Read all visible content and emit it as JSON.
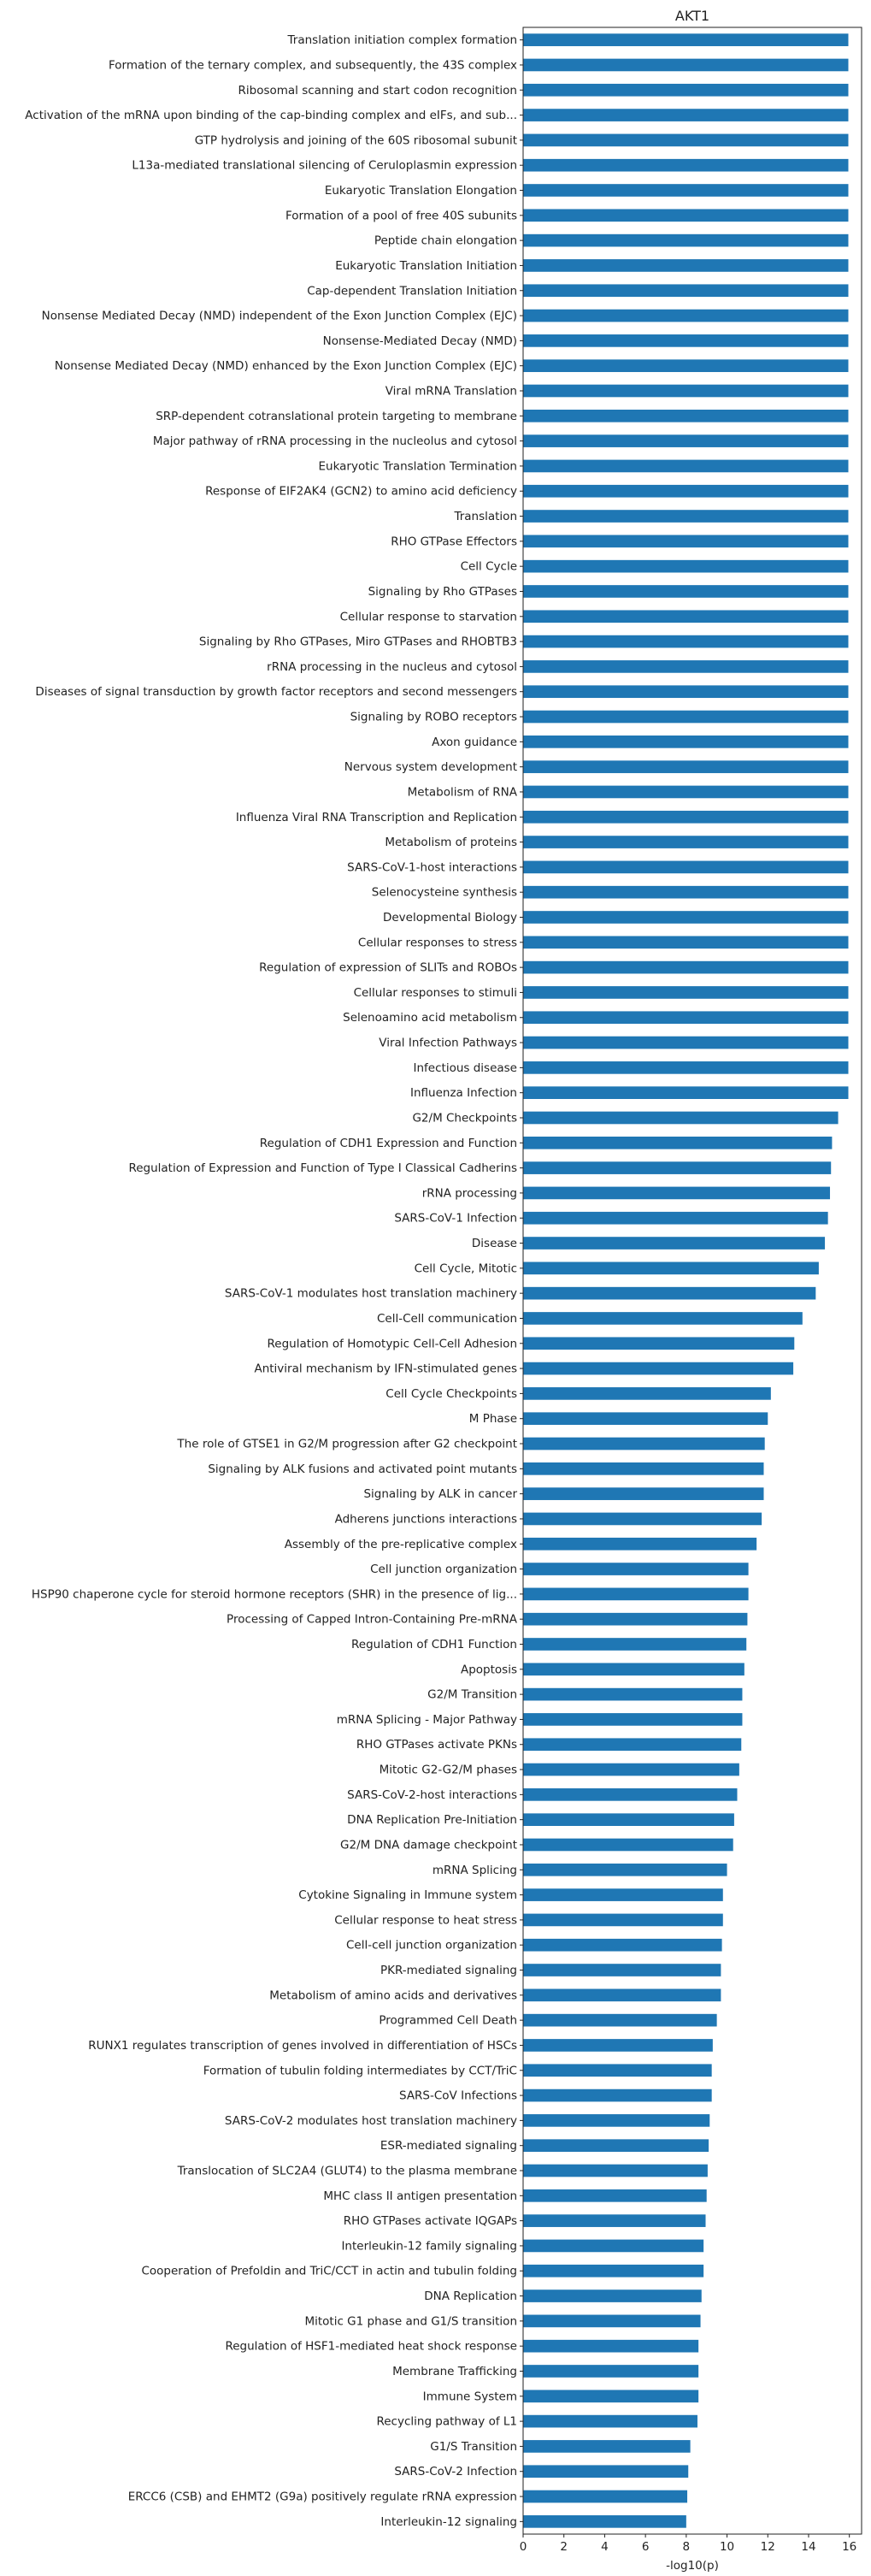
{
  "chart_data": {
    "type": "bar",
    "orientation": "horizontal",
    "title": "AKT1",
    "xlabel": "-log10(p)",
    "ylabel": "",
    "xlim": [
      0,
      16.6
    ],
    "xticks": [
      0,
      2,
      4,
      6,
      8,
      10,
      12,
      14,
      16
    ],
    "grid": false,
    "legend": "none",
    "bar_color": "#1f77b4",
    "categories": [
      "Translation initiation complex formation",
      "Formation of the ternary complex, and subsequently, the 43S complex",
      "Ribosomal scanning and start codon recognition",
      "Activation of the mRNA upon binding of the cap-binding complex and eIFs, and sub...",
      "GTP hydrolysis and joining of the 60S ribosomal subunit",
      "L13a-mediated translational silencing of Ceruloplasmin expression",
      "Eukaryotic Translation Elongation",
      "Formation of a pool of free 40S subunits",
      "Peptide chain elongation",
      "Eukaryotic Translation Initiation",
      "Cap-dependent Translation Initiation",
      "Nonsense Mediated Decay (NMD) independent of the Exon Junction Complex (EJC)",
      "Nonsense-Mediated Decay (NMD)",
      "Nonsense Mediated Decay (NMD) enhanced by the Exon Junction Complex (EJC)",
      "Viral mRNA Translation",
      "SRP-dependent cotranslational protein targeting to membrane",
      "Major pathway of rRNA processing in the nucleolus and cytosol",
      "Eukaryotic Translation Termination",
      "Response of EIF2AK4 (GCN2) to amino acid deficiency",
      "Translation",
      "RHO GTPase Effectors",
      "Cell Cycle",
      "Signaling by Rho GTPases",
      "Cellular response to starvation",
      "Signaling by Rho GTPases, Miro GTPases and RHOBTB3",
      "rRNA processing in the nucleus and cytosol",
      "Diseases of signal transduction by growth factor receptors and second messengers",
      "Signaling by ROBO receptors",
      "Axon guidance",
      "Nervous system development",
      "Metabolism of RNA",
      "Influenza Viral RNA Transcription and Replication",
      "Metabolism of proteins",
      "SARS-CoV-1-host interactions",
      "Selenocysteine synthesis",
      "Developmental Biology",
      "Cellular responses to stress",
      "Regulation of expression of SLITs and ROBOs",
      "Cellular responses to stimuli",
      "Selenoamino acid metabolism",
      "Viral Infection Pathways",
      "Infectious disease",
      "Influenza Infection",
      "G2/M Checkpoints",
      "Regulation of CDH1 Expression and Function",
      "Regulation of Expression and Function of Type I Classical Cadherins",
      "rRNA processing",
      "SARS-CoV-1 Infection",
      "Disease",
      "Cell Cycle, Mitotic",
      "SARS-CoV-1 modulates host translation machinery",
      "Cell-Cell communication",
      "Regulation of Homotypic Cell-Cell Adhesion",
      "Antiviral mechanism by IFN-stimulated genes",
      "Cell Cycle Checkpoints",
      "M Phase",
      "The role of GTSE1 in G2/M progression after G2 checkpoint",
      "Signaling by ALK fusions and activated point mutants",
      "Signaling by ALK in cancer",
      "Adherens junctions interactions",
      "Assembly of the pre-replicative complex",
      "Cell junction organization",
      "HSP90 chaperone cycle for steroid hormone receptors (SHR) in the presence of lig...",
      "Processing of Capped Intron-Containing Pre-mRNA",
      "Regulation of CDH1 Function",
      "Apoptosis",
      "G2/M Transition",
      "mRNA Splicing - Major Pathway",
      "RHO GTPases activate PKNs",
      "Mitotic G2-G2/M phases",
      "SARS-CoV-2-host interactions",
      "DNA Replication Pre-Initiation",
      "G2/M DNA damage checkpoint",
      "mRNA Splicing",
      "Cytokine Signaling in Immune system",
      "Cellular response to heat stress",
      "Cell-cell junction organization",
      "PKR-mediated signaling",
      "Metabolism of amino acids and derivatives",
      "Programmed Cell Death",
      "RUNX1 regulates transcription of genes involved in differentiation of HSCs",
      "Formation of tubulin folding intermediates by CCT/TriC",
      "SARS-CoV Infections",
      "SARS-CoV-2 modulates host translation machinery",
      "ESR-mediated signaling",
      "Translocation of SLC2A4 (GLUT4) to the plasma membrane",
      "MHC class II antigen presentation",
      "RHO GTPases activate IQGAPs",
      "Interleukin-12 family signaling",
      "Cooperation of Prefoldin and TriC/CCT  in actin and tubulin folding",
      "DNA Replication",
      "Mitotic G1 phase and G1/S transition",
      "Regulation of HSF1-mediated heat shock response",
      "Membrane Trafficking",
      "Immune System",
      "Recycling pathway of L1",
      "G1/S Transition",
      "SARS-CoV-2 Infection",
      "ERCC6 (CSB) and EHMT2 (G9a) positively regulate rRNA expression",
      "Interleukin-12 signaling"
    ],
    "values": [
      15.95,
      15.95,
      15.95,
      15.95,
      15.95,
      15.95,
      15.95,
      15.95,
      15.95,
      15.95,
      15.95,
      15.95,
      15.95,
      15.95,
      15.95,
      15.95,
      15.95,
      15.95,
      15.95,
      15.95,
      15.95,
      15.95,
      15.95,
      15.95,
      15.95,
      15.95,
      15.95,
      15.95,
      15.95,
      15.95,
      15.95,
      15.95,
      15.95,
      15.95,
      15.95,
      15.95,
      15.95,
      15.95,
      15.95,
      15.95,
      15.95,
      15.95,
      15.95,
      15.45,
      15.15,
      15.1,
      15.05,
      14.95,
      14.8,
      14.5,
      14.35,
      13.7,
      13.3,
      13.25,
      12.15,
      12.0,
      11.85,
      11.8,
      11.8,
      11.7,
      11.45,
      11.05,
      11.05,
      11.0,
      10.95,
      10.85,
      10.75,
      10.75,
      10.7,
      10.6,
      10.5,
      10.35,
      10.3,
      10.0,
      9.8,
      9.8,
      9.75,
      9.7,
      9.7,
      9.5,
      9.3,
      9.25,
      9.25,
      9.15,
      9.1,
      9.05,
      9.0,
      8.95,
      8.85,
      8.85,
      8.75,
      8.7,
      8.6,
      8.6,
      8.6,
      8.55,
      8.2,
      8.1,
      8.05,
      8.0
    ]
  }
}
